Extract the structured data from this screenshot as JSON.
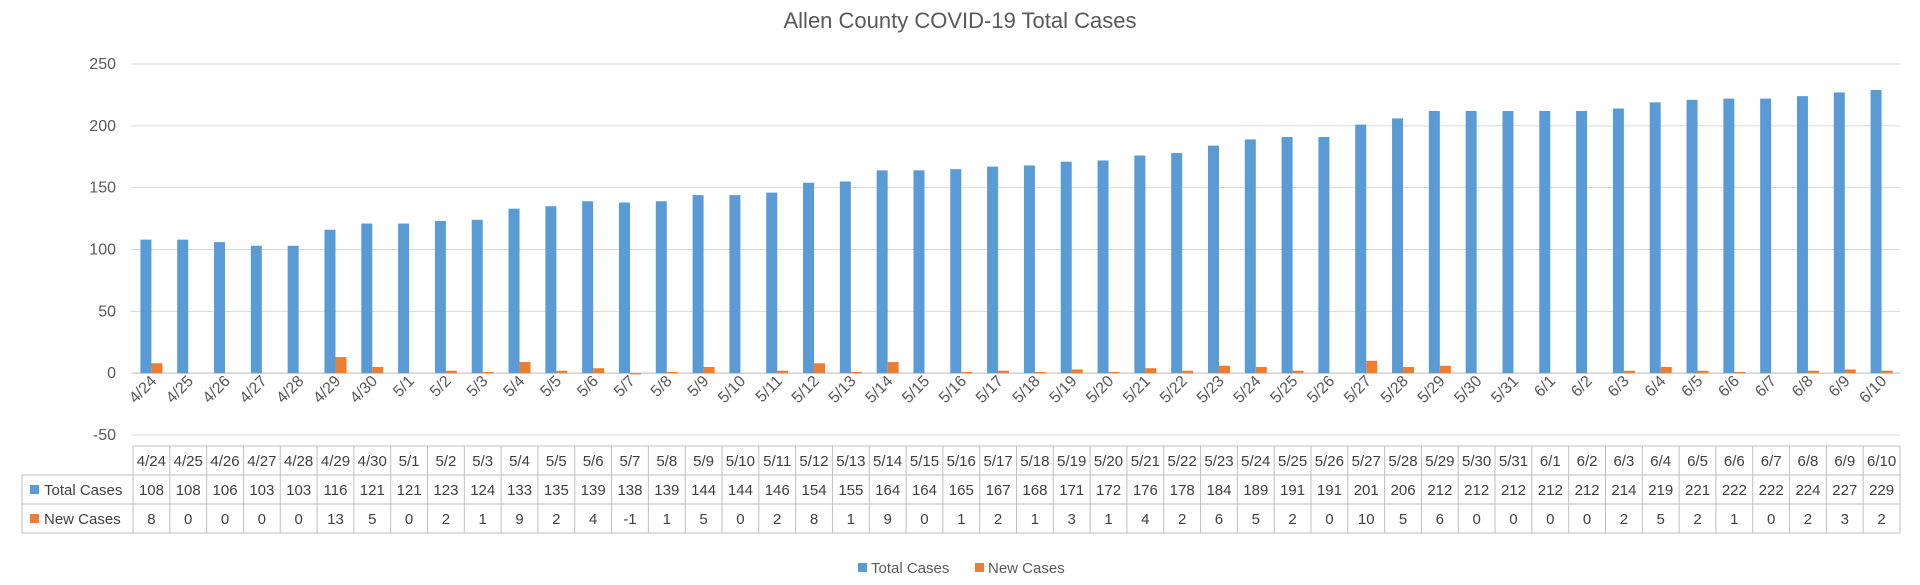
{
  "chart_data": {
    "type": "bar",
    "title": "Allen County COVID-19 Total Cases",
    "categories": [
      "4/24",
      "4/25",
      "4/26",
      "4/27",
      "4/28",
      "4/29",
      "4/30",
      "5/1",
      "5/2",
      "5/3",
      "5/4",
      "5/5",
      "5/6",
      "5/7",
      "5/8",
      "5/9",
      "5/10",
      "5/11",
      "5/12",
      "5/13",
      "5/14",
      "5/15",
      "5/16",
      "5/17",
      "5/18",
      "5/19",
      "5/20",
      "5/21",
      "5/22",
      "5/23",
      "5/24",
      "5/25",
      "5/26",
      "5/27",
      "5/28",
      "5/29",
      "5/30",
      "5/31",
      "6/1",
      "6/2",
      "6/3",
      "6/4",
      "6/5",
      "6/6",
      "6/7",
      "6/8",
      "6/9",
      "6/10"
    ],
    "series": [
      {
        "name": "Total Cases",
        "color": "#5B9BD5",
        "values": [
          108,
          108,
          106,
          103,
          103,
          116,
          121,
          121,
          123,
          124,
          133,
          135,
          139,
          138,
          139,
          144,
          144,
          146,
          154,
          155,
          164,
          164,
          165,
          167,
          168,
          171,
          172,
          176,
          178,
          184,
          189,
          191,
          191,
          201,
          206,
          212,
          212,
          212,
          212,
          212,
          214,
          219,
          221,
          222,
          222,
          224,
          227,
          229
        ]
      },
      {
        "name": "New Cases",
        "color": "#ED7D31",
        "values": [
          8,
          0,
          0,
          0,
          0,
          13,
          5,
          0,
          2,
          1,
          9,
          2,
          4,
          -1,
          1,
          5,
          0,
          2,
          8,
          1,
          9,
          0,
          1,
          2,
          1,
          3,
          1,
          4,
          2,
          6,
          5,
          2,
          0,
          10,
          5,
          6,
          0,
          0,
          0,
          0,
          2,
          5,
          2,
          1,
          0,
          2,
          3,
          2
        ]
      }
    ],
    "ylim": [
      -50,
      250
    ],
    "yticks": [
      -50,
      0,
      50,
      100,
      150,
      200,
      250
    ],
    "grid": true,
    "legend": "bottom",
    "data_table": true
  }
}
